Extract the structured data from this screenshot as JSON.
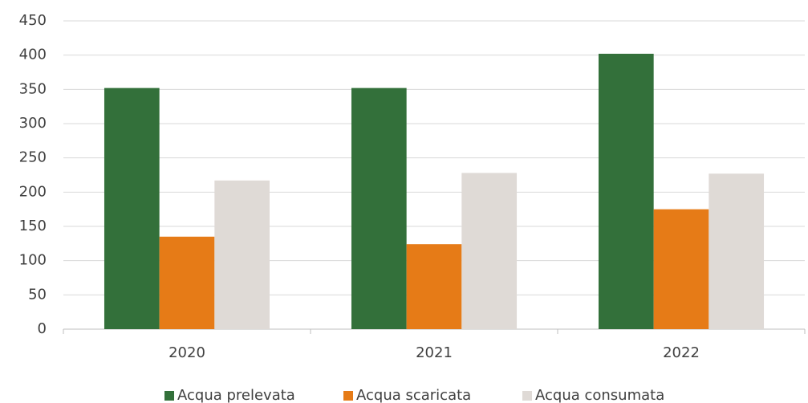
{
  "chart_data": {
    "type": "bar",
    "categories": [
      "2020",
      "2021",
      "2022"
    ],
    "series": [
      {
        "name": "Acqua prelevata",
        "color": "#33703a",
        "values": [
          352,
          352,
          402
        ]
      },
      {
        "name": "Acqua scaricata",
        "color": "#e67b17",
        "values": [
          135,
          124,
          175
        ]
      },
      {
        "name": "Acqua consumata",
        "color": "#dfdad6",
        "values": [
          217,
          228,
          227
        ]
      }
    ],
    "ylim": [
      0,
      450
    ],
    "yticks": [
      0,
      50,
      100,
      150,
      200,
      250,
      300,
      350,
      400,
      450
    ],
    "grid": true,
    "legend": "bottom"
  }
}
